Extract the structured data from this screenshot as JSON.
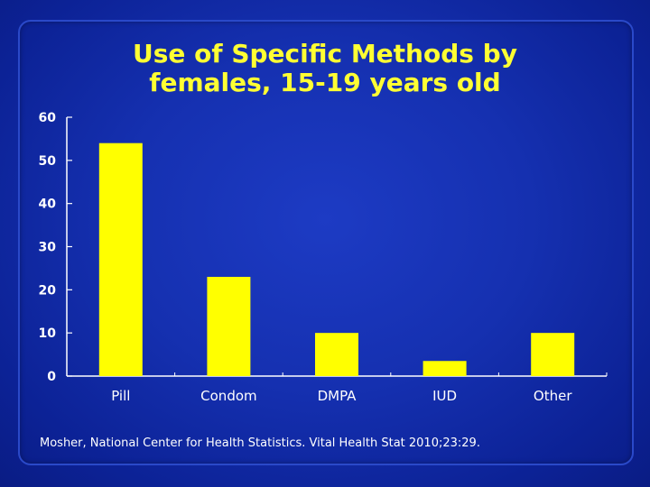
{
  "title_line1": "Use of Specific Methods by",
  "title_line2": "females, 15-19 years old",
  "source": "Mosher, National Center for Health Statistics. Vital Health Stat 2010;23:29.",
  "colors": {
    "background": "#1530b0",
    "bar": "#ffff00",
    "title": "#ffff33",
    "axis": "#ffffff"
  },
  "chart_data": {
    "type": "bar",
    "categories": [
      "Pill",
      "Condom",
      "DMPA",
      "IUD",
      "Other"
    ],
    "values": [
      54,
      23,
      10,
      3.5,
      10
    ],
    "ylim": [
      0,
      60
    ],
    "yticks": [
      "0",
      "10",
      "20",
      "30",
      "40",
      "50",
      "60"
    ],
    "title": "Use of Specific Methods by females, 15-19 years old",
    "xlabel": "",
    "ylabel": "",
    "grid": false,
    "legend": "none"
  }
}
